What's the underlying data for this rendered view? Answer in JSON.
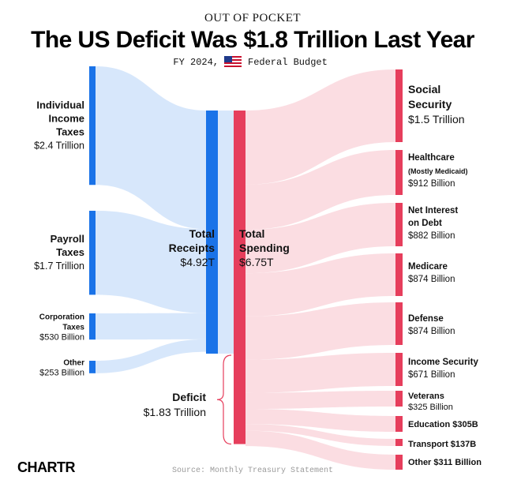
{
  "header": {
    "kicker": "OUT OF POCKET",
    "title": "The US Deficit Was $1.8 Trillion Last Year",
    "subtitle_left": "FY 2024,",
    "subtitle_right": "Federal Budget"
  },
  "footer": {
    "source": "Source: Monthly Treasury Statement",
    "brand": "CHARTR"
  },
  "colors": {
    "receipts": "#1a73e8",
    "receipts_flow": "#d7e7fb",
    "spending": "#e63e5c",
    "spending_flow": "#fbdde2",
    "deficit": "#e63e5c"
  },
  "chart_data": {
    "type": "sankey",
    "title": "The US Deficit Was $1.8 Trillion Last Year",
    "units": "USD billions",
    "receipts": [
      {
        "name": "Individual Income Taxes",
        "value": 2400,
        "label_lines": [
          "Individual",
          "Income",
          "Taxes"
        ],
        "value_label": "$2.4 Trillion"
      },
      {
        "name": "Payroll Taxes",
        "value": 1700,
        "label_lines": [
          "Payroll",
          "Taxes"
        ],
        "value_label": "$1.7 Trillion"
      },
      {
        "name": "Corporation Taxes",
        "value": 530,
        "label_lines": [
          "Corporation",
          "Taxes"
        ],
        "value_label": "$530 Billion"
      },
      {
        "name": "Other",
        "value": 253,
        "label_lines": [
          "Other"
        ],
        "value_label": "$253 Billion"
      }
    ],
    "total_receipts": {
      "value": 4920,
      "label_lines": [
        "Total",
        "Receipts"
      ],
      "value_label": "$4.92T"
    },
    "total_spending": {
      "value": 6750,
      "label_lines": [
        "Total",
        "Spending"
      ],
      "value_label": "$6.75T"
    },
    "deficit": {
      "value": 1830,
      "label": "Deficit",
      "value_label": "$1.83 Trillion"
    },
    "spending": [
      {
        "name": "Social Security",
        "value": 1500,
        "label_lines": [
          "Social",
          "Security"
        ],
        "note": "",
        "value_label": "$1.5 Trillion"
      },
      {
        "name": "Healthcare",
        "value": 912,
        "label_lines": [
          "Healthcare"
        ],
        "note": "(Mostly Medicaid)",
        "value_label": "$912 Billion"
      },
      {
        "name": "Net Interest on Debt",
        "value": 882,
        "label_lines": [
          "Net Interest",
          "on Debt"
        ],
        "note": "",
        "value_label": "$882 Billion"
      },
      {
        "name": "Medicare",
        "value": 874,
        "label_lines": [
          "Medicare"
        ],
        "note": "",
        "value_label": "$874 Billion"
      },
      {
        "name": "Defense",
        "value": 874,
        "label_lines": [
          "Defense"
        ],
        "note": "",
        "value_label": "$874 Billion"
      },
      {
        "name": "Income Security",
        "value": 671,
        "label_lines": [
          "Income Security"
        ],
        "note": "",
        "value_label": "$671 Billion"
      },
      {
        "name": "Veterans",
        "value": 325,
        "label_lines": [
          "Veterans"
        ],
        "note": "",
        "value_label": "$325 Billion"
      },
      {
        "name": "Education",
        "value": 305,
        "label_lines": [
          "Education $305B"
        ],
        "note": "",
        "value_label": ""
      },
      {
        "name": "Transport",
        "value": 137,
        "label_lines": [
          "Transport $137B"
        ],
        "note": "",
        "value_label": ""
      },
      {
        "name": "Other",
        "value": 311,
        "label_lines": [
          "Other $311 Billion"
        ],
        "note": "",
        "value_label": ""
      }
    ]
  }
}
